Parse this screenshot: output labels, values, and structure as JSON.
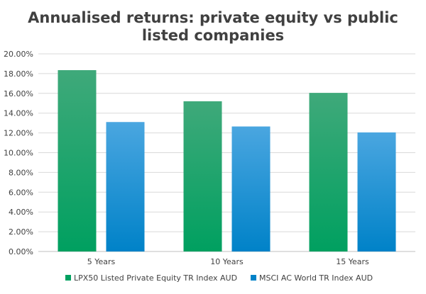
{
  "chart": {
    "title_line1": "Annualised returns: private equity vs public",
    "title_line2": "listed companies"
  },
  "chart_data": {
    "type": "bar",
    "title": "Annualised returns: private equity vs public listed companies",
    "categories": [
      "5 Years",
      "10 Years",
      "15 Years"
    ],
    "series": [
      {
        "name": "LPX50 Listed Private Equity TR Index AUD",
        "values": [
          18.35,
          15.2,
          16.05
        ],
        "color": "#00A060",
        "color_top": "#3FA97A"
      },
      {
        "name": "MSCI AC World TR Index AUD",
        "values": [
          13.1,
          12.65,
          12.05
        ],
        "color": "#0082C8",
        "color_top": "#4AA6E0"
      }
    ],
    "ylim": [
      0,
      20
    ],
    "yticks": [
      0,
      2,
      4,
      6,
      8,
      10,
      12,
      14,
      16,
      18,
      20
    ],
    "ytick_labels": [
      "0.00%",
      "2.00%",
      "4.00%",
      "6.00%",
      "8.00%",
      "10.00%",
      "12.00%",
      "14.00%",
      "16.00%",
      "18.00%",
      "20.00%"
    ],
    "xlabel": "",
    "ylabel": "",
    "grid": true,
    "legend_position": "bottom"
  }
}
